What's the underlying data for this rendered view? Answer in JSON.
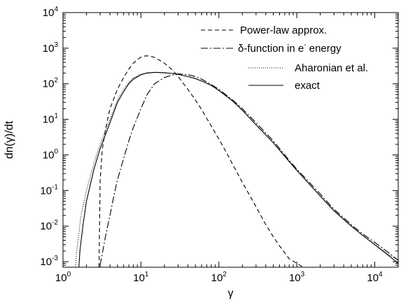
{
  "chart_data": {
    "type": "line",
    "xlabel": "γ",
    "ylabel": "dn(γ)/dt",
    "x_scale": "log",
    "y_scale": "log",
    "xlim": [
      1,
      20000
    ],
    "ylim": [
      0.0007,
      10000
    ],
    "grid": false,
    "legend_position": "top-right",
    "x_ticks": [
      {
        "value": 1,
        "base": "10",
        "exp": "0"
      },
      {
        "value": 10,
        "base": "10",
        "exp": "1"
      },
      {
        "value": 100,
        "base": "10",
        "exp": "2"
      },
      {
        "value": 1000,
        "base": "10",
        "exp": "3"
      },
      {
        "value": 10000,
        "base": "10",
        "exp": "4"
      }
    ],
    "y_ticks": [
      {
        "value": 0.001,
        "base": "10",
        "exp": "-3"
      },
      {
        "value": 0.01,
        "base": "10",
        "exp": "-2"
      },
      {
        "value": 0.1,
        "base": "10",
        "exp": "-1"
      },
      {
        "value": 1,
        "base": "10",
        "exp": "0"
      },
      {
        "value": 10,
        "base": "10",
        "exp": "1"
      },
      {
        "value": 100,
        "base": "10",
        "exp": "2"
      },
      {
        "value": 1000,
        "base": "10",
        "exp": "3"
      },
      {
        "value": 10000,
        "base": "10",
        "exp": "4"
      }
    ],
    "series": [
      {
        "name": "Power-law approx.",
        "label_parts": [
          {
            "text": "Power-law approx.",
            "shift": "normal"
          }
        ],
        "dash": "6,4",
        "color": "#000000",
        "points": [
          [
            2.9,
            0.0007
          ],
          [
            3.0,
            0.2
          ],
          [
            3.2,
            1.5
          ],
          [
            3.5,
            5
          ],
          [
            4,
            20
          ],
          [
            5,
            70
          ],
          [
            6,
            150
          ],
          [
            7,
            260
          ],
          [
            8,
            380
          ],
          [
            9,
            480
          ],
          [
            10,
            560
          ],
          [
            11,
            600
          ],
          [
            12,
            610
          ],
          [
            13,
            600
          ],
          [
            15,
            550
          ],
          [
            20,
            380
          ],
          [
            25,
            250
          ],
          [
            30,
            160
          ],
          [
            40,
            70
          ],
          [
            50,
            35
          ],
          [
            60,
            19
          ],
          [
            70,
            10.5
          ],
          [
            80,
            6.5
          ],
          [
            100,
            2.8
          ],
          [
            130,
            1.0
          ],
          [
            150,
            0.55
          ],
          [
            200,
            0.17
          ],
          [
            300,
            0.035
          ],
          [
            400,
            0.011
          ],
          [
            500,
            0.005
          ],
          [
            600,
            0.0028
          ],
          [
            800,
            0.0012
          ],
          [
            1000,
            0.0009
          ],
          [
            1200,
            0.0007
          ]
        ]
      },
      {
        "name": "δ-function in e- energy",
        "label_parts": [
          {
            "text": "δ-function in e",
            "shift": "normal"
          },
          {
            "text": "-",
            "shift": "super"
          },
          {
            "text": " energy",
            "shift": "normal"
          }
        ],
        "dash": "10,3,2,3",
        "color": "#000000",
        "points": [
          [
            3,
            0.0008
          ],
          [
            3.5,
            0.005
          ],
          [
            4,
            0.02
          ],
          [
            4.5,
            0.07
          ],
          [
            5,
            0.2
          ],
          [
            6,
            0.8
          ],
          [
            7,
            2.5
          ],
          [
            8,
            6
          ],
          [
            10,
            20
          ],
          [
            12,
            50
          ],
          [
            15,
            100
          ],
          [
            20,
            150
          ],
          [
            25,
            175
          ],
          [
            30,
            190
          ],
          [
            35,
            185
          ],
          [
            40,
            180
          ],
          [
            50,
            160
          ],
          [
            60,
            135
          ],
          [
            80,
            95
          ],
          [
            100,
            70
          ],
          [
            150,
            35
          ],
          [
            200,
            20
          ],
          [
            300,
            8
          ],
          [
            500,
            2.5
          ],
          [
            800,
            0.7
          ],
          [
            1000,
            0.4
          ],
          [
            2000,
            0.08
          ],
          [
            3000,
            0.03
          ],
          [
            5000,
            0.011
          ],
          [
            7000,
            0.006
          ],
          [
            10000,
            0.0035
          ],
          [
            15000,
            0.0018
          ],
          [
            20000,
            0.0011
          ]
        ]
      },
      {
        "name": "Aharonian et al.",
        "label_parts": [
          {
            "text": "Aharonian et al.",
            "shift": "normal"
          }
        ],
        "dash": "1,2",
        "color": "#000000",
        "points": [
          [
            1.45,
            0.0007
          ],
          [
            1.5,
            0.002
          ],
          [
            1.7,
            0.02
          ],
          [
            2,
            0.1
          ],
          [
            2.5,
            0.6
          ],
          [
            3,
            2
          ],
          [
            4,
            10
          ],
          [
            5,
            35
          ],
          [
            6,
            70
          ],
          [
            7,
            110
          ],
          [
            8,
            145
          ],
          [
            10,
            185
          ],
          [
            12,
            205
          ],
          [
            15,
            210
          ],
          [
            20,
            200
          ],
          [
            25,
            195
          ],
          [
            30,
            185
          ],
          [
            40,
            160
          ],
          [
            50,
            140
          ],
          [
            60,
            120
          ],
          [
            80,
            90
          ],
          [
            100,
            65
          ],
          [
            150,
            33
          ],
          [
            200,
            18
          ],
          [
            300,
            7
          ],
          [
            500,
            2.2
          ],
          [
            800,
            0.65
          ],
          [
            1000,
            0.37
          ],
          [
            2000,
            0.07
          ],
          [
            3000,
            0.027
          ],
          [
            5000,
            0.01
          ],
          [
            7000,
            0.0055
          ],
          [
            10000,
            0.0031
          ],
          [
            15000,
            0.0016
          ],
          [
            20000,
            0.0011
          ]
        ]
      },
      {
        "name": "exact",
        "label_parts": [
          {
            "text": "exact",
            "shift": "normal"
          }
        ],
        "dash": "",
        "color": "#000000",
        "points": [
          [
            1.6,
            0.0007
          ],
          [
            1.65,
            0.002
          ],
          [
            1.8,
            0.01
          ],
          [
            2,
            0.05
          ],
          [
            2.5,
            0.4
          ],
          [
            3,
            1.5
          ],
          [
            4,
            8
          ],
          [
            5,
            30
          ],
          [
            6,
            60
          ],
          [
            7,
            100
          ],
          [
            8,
            135
          ],
          [
            10,
            180
          ],
          [
            12,
            200
          ],
          [
            15,
            210
          ],
          [
            20,
            205
          ],
          [
            25,
            195
          ],
          [
            30,
            185
          ],
          [
            40,
            160
          ],
          [
            50,
            140
          ],
          [
            60,
            120
          ],
          [
            80,
            90
          ],
          [
            100,
            65
          ],
          [
            150,
            33
          ],
          [
            200,
            18
          ],
          [
            300,
            7
          ],
          [
            500,
            2.2
          ],
          [
            800,
            0.65
          ],
          [
            1000,
            0.37
          ],
          [
            2000,
            0.07
          ],
          [
            3000,
            0.027
          ],
          [
            5000,
            0.01
          ],
          [
            7000,
            0.0055
          ],
          [
            10000,
            0.003
          ],
          [
            15000,
            0.0015
          ],
          [
            20000,
            0.0009
          ]
        ]
      }
    ]
  }
}
